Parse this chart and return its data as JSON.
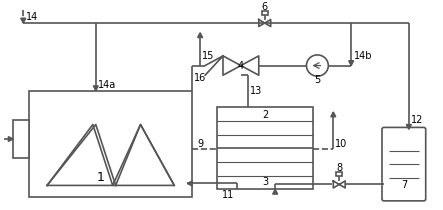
{
  "figsize": [
    4.43,
    2.1
  ],
  "dpi": 100,
  "lc": "#555555",
  "lw": 1.2
}
